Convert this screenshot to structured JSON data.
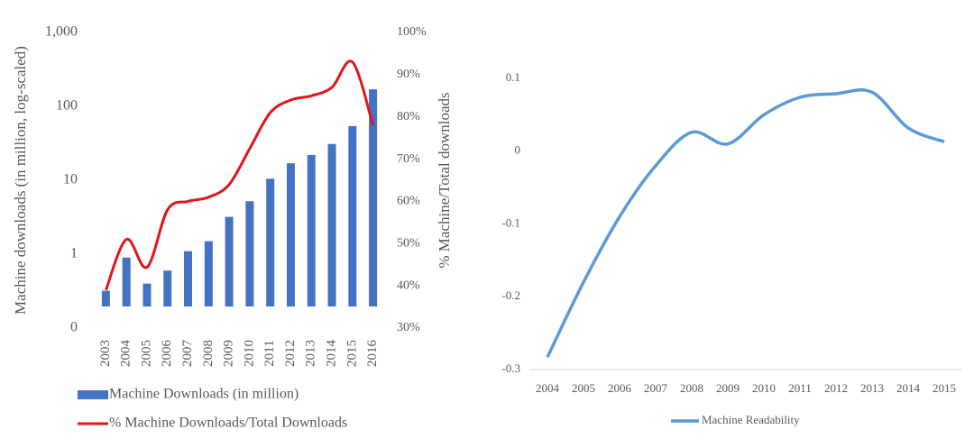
{
  "chart_data": [
    {
      "type": "bar",
      "y_label": "Machine downloads (in million, log-scaled)",
      "y2_label": "% Machine/Total downloads",
      "categories": [
        "2003",
        "2004",
        "2005",
        "2006",
        "2007",
        "2008",
        "2009",
        "2010",
        "2011",
        "2012",
        "2013",
        "2014",
        "2015",
        "2016"
      ],
      "log_scale": true,
      "ylim": [
        0.1,
        1000
      ],
      "yticks": [
        {
          "value": 0.1,
          "label": "0"
        },
        1,
        10,
        100,
        {
          "value": 1000,
          "label": "1,000"
        }
      ],
      "y2lim": [
        30,
        100
      ],
      "y2ticks": [
        {
          "value": 30,
          "label": "30%"
        },
        {
          "value": 40,
          "label": "40%"
        },
        {
          "value": 50,
          "label": "50%"
        },
        {
          "value": 60,
          "label": "60%"
        },
        {
          "value": 70,
          "label": "70%"
        },
        {
          "value": 80,
          "label": "80%"
        },
        {
          "value": 90,
          "label": "90%"
        },
        {
          "value": 100,
          "label": "100%"
        }
      ],
      "series": [
        {
          "name": "Machine Downloads (in million)",
          "type": "bar",
          "color": "#4472c4",
          "values": [
            0.32,
            0.9,
            0.4,
            0.6,
            1.1,
            1.5,
            3.2,
            5.2,
            10.5,
            17,
            22,
            31,
            54,
            170
          ]
        },
        {
          "name": "% Machine Downloads/Total Downloads",
          "type": "line",
          "axis": "y2",
          "color": "#e0161b",
          "values": [
            39,
            51,
            44.4,
            58,
            60,
            61,
            64,
            72.5,
            81,
            84,
            85,
            87,
            93,
            78
          ]
        }
      ]
    },
    {
      "type": "line",
      "categories": [
        "2004",
        "2005",
        "2006",
        "2007",
        "2008",
        "2009",
        "2010",
        "2011",
        "2012",
        "2013",
        "2014",
        "2015"
      ],
      "ylim": [
        -0.3,
        0.1
      ],
      "yticks": [
        -0.3,
        -0.2,
        -0.1,
        0,
        0.1
      ],
      "series": [
        {
          "name": "Machine Readability",
          "color": "#5b9bd5",
          "values": [
            -0.283,
            -0.18,
            -0.09,
            -0.02,
            0.026,
            0.01,
            0.05,
            0.074,
            0.079,
            0.081,
            0.032,
            0.013
          ]
        }
      ]
    }
  ]
}
